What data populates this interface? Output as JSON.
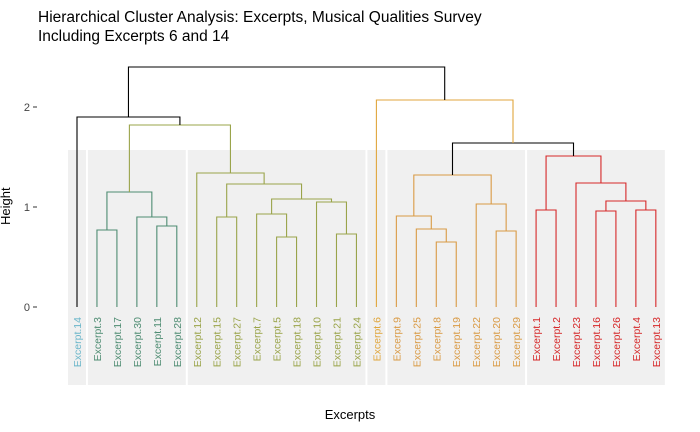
{
  "chart_data": {
    "type": "dendrogram",
    "title_lines": [
      "Hierarchical Cluster Analysis: Excerpts, Musical Qualities Survey",
      "Including Excerpts 6 and 14"
    ],
    "xlabel": "Excerpts",
    "ylabel": "Height",
    "y_ticks": [
      0,
      1,
      2
    ],
    "ylim": [
      0,
      2.4
    ],
    "grid": false,
    "leaves": [
      {
        "label": "Excerpt.14",
        "cluster": 0
      },
      {
        "label": "Excerpt.3",
        "cluster": 1
      },
      {
        "label": "Excerpt.17",
        "cluster": 1
      },
      {
        "label": "Excerpt.30",
        "cluster": 1
      },
      {
        "label": "Excerpt.11",
        "cluster": 1
      },
      {
        "label": "Excerpt.28",
        "cluster": 1
      },
      {
        "label": "Excerpt.12",
        "cluster": 2
      },
      {
        "label": "Excerpt.15",
        "cluster": 2
      },
      {
        "label": "Excerpt.27",
        "cluster": 2
      },
      {
        "label": "Excerpt.7",
        "cluster": 2
      },
      {
        "label": "Excerpt.5",
        "cluster": 2
      },
      {
        "label": "Excerpt.18",
        "cluster": 2
      },
      {
        "label": "Excerpt.10",
        "cluster": 2
      },
      {
        "label": "Excerpt.21",
        "cluster": 2
      },
      {
        "label": "Excerpt.24",
        "cluster": 2
      },
      {
        "label": "Excerpt.6",
        "cluster": 3
      },
      {
        "label": "Excerpt.9",
        "cluster": 4
      },
      {
        "label": "Excerpt.25",
        "cluster": 4
      },
      {
        "label": "Excerpt.8",
        "cluster": 4
      },
      {
        "label": "Excerpt.19",
        "cluster": 4
      },
      {
        "label": "Excerpt.22",
        "cluster": 4
      },
      {
        "label": "Excerpt.20",
        "cluster": 4
      },
      {
        "label": "Excerpt.29",
        "cluster": 4
      },
      {
        "label": "Excerpt.1",
        "cluster": 5
      },
      {
        "label": "Excerpt.2",
        "cluster": 5
      },
      {
        "label": "Excerpt.23",
        "cluster": 5
      },
      {
        "label": "Excerpt.16",
        "cluster": 5
      },
      {
        "label": "Excerpt.26",
        "cluster": 5
      },
      {
        "label": "Excerpt.4",
        "cluster": 5
      },
      {
        "label": "Excerpt.13",
        "cluster": 5
      }
    ],
    "cluster_colors": [
      "#6bb6c9",
      "#4e8c72",
      "#9aa44a",
      "#e0a63c",
      "#d99a44",
      "#d62728"
    ],
    "root_color": "#000000",
    "cluster_highlight_color": "#f0f0f0",
    "merges": [
      {
        "l": "L1",
        "r": "L2",
        "h": 0.77,
        "c": 1
      },
      {
        "l": "L4",
        "r": "L5",
        "h": 0.81,
        "c": 1
      },
      {
        "l": "L3",
        "r": "N2",
        "h": 0.9,
        "c": 1
      },
      {
        "l": "N1",
        "r": "N3",
        "h": 1.15,
        "c": 1
      },
      {
        "l": "L7",
        "r": "L8",
        "h": 0.9,
        "c": 2
      },
      {
        "l": "L10",
        "r": "L11",
        "h": 0.7,
        "c": 2
      },
      {
        "l": "L9",
        "r": "N6",
        "h": 0.93,
        "c": 2
      },
      {
        "l": "L13",
        "r": "L14",
        "h": 0.73,
        "c": 2
      },
      {
        "l": "L12",
        "r": "N8",
        "h": 1.05,
        "c": 2
      },
      {
        "l": "N7",
        "r": "N9",
        "h": 1.08,
        "c": 2
      },
      {
        "l": "N5",
        "r": "N10",
        "h": 1.23,
        "c": 2
      },
      {
        "l": "L6",
        "r": "N11",
        "h": 1.34,
        "c": 2
      },
      {
        "l": "N4",
        "r": "N12",
        "h": 1.82,
        "c": 2
      },
      {
        "l": "L0",
        "r": "N13",
        "h": 1.9,
        "c": "root"
      },
      {
        "l": "L18",
        "r": "L19",
        "h": 0.65,
        "c": 4
      },
      {
        "l": "L17",
        "r": "N15",
        "h": 0.78,
        "c": 4
      },
      {
        "l": "L16",
        "r": "N16",
        "h": 0.91,
        "c": 4
      },
      {
        "l": "L21",
        "r": "L22",
        "h": 0.76,
        "c": 4
      },
      {
        "l": "L20",
        "r": "N18",
        "h": 1.03,
        "c": 4
      },
      {
        "l": "N17",
        "r": "N19",
        "h": 1.32,
        "c": 4
      },
      {
        "l": "L23",
        "r": "L24",
        "h": 0.97,
        "c": 5
      },
      {
        "l": "L26",
        "r": "L27",
        "h": 0.96,
        "c": 5
      },
      {
        "l": "L29",
        "r": "L28",
        "h": 0.97,
        "c": 5
      },
      {
        "l": "N22",
        "r": "N23",
        "h": 1.06,
        "c": 5
      },
      {
        "l": "L25",
        "r": "N24",
        "h": 1.24,
        "c": 5
      },
      {
        "l": "N21",
        "r": "N25",
        "h": 1.51,
        "c": 5
      },
      {
        "l": "N20",
        "r": "N26",
        "h": 1.64,
        "c": "root"
      },
      {
        "l": "L15",
        "r": "N27",
        "h": 2.07,
        "c": 3
      },
      {
        "l": "N14",
        "r": "N28",
        "h": 2.4,
        "c": "root"
      }
    ]
  }
}
